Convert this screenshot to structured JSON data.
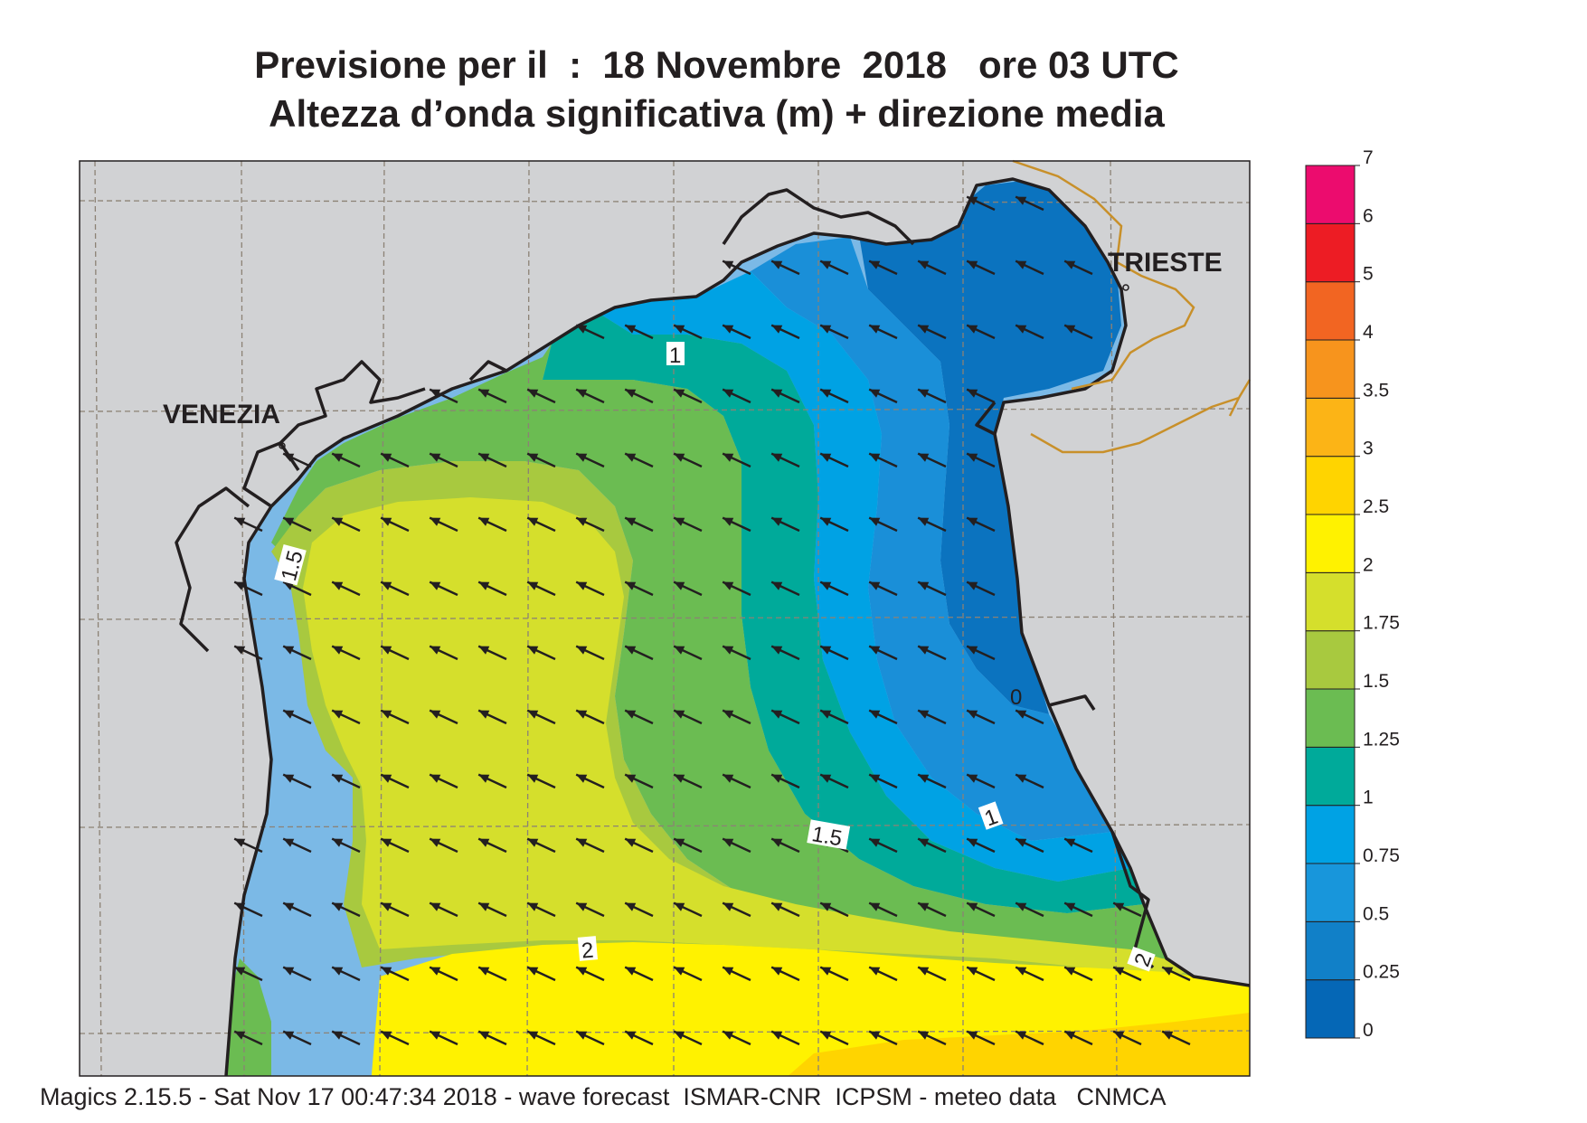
{
  "title": {
    "line1": "Previsione per il  :  18 Novembre  2018   ore 03 UTC",
    "line2": "Altezza d’onda significativa (m) + direzione media"
  },
  "footer": "Magics 2.15.5 - Sat Nov 17 00:47:34 2018 - wave forecast  ISMAR-CNR  ICPSM - meteo data   CNMCA",
  "cities": [
    {
      "name": "VENEZIA"
    },
    {
      "name": "TRIESTE"
    }
  ],
  "contour_labels": [
    "1",
    "1.5",
    "1",
    "1.5",
    "2",
    "2",
    "0"
  ],
  "colorbar": {
    "ticks": [
      "0",
      "0.25",
      "0.5",
      "0.75",
      "1",
      "1.25",
      "1.5",
      "1.75",
      "2",
      "2.5",
      "3",
      "3.5",
      "4",
      "5",
      "6",
      "7"
    ],
    "colors": [
      "#0567b6",
      "#1180c8",
      "#1896db",
      "#00a2e4",
      "#00aa9a",
      "#6bbc52",
      "#a8c93f",
      "#d5df2c",
      "#fff200",
      "#ffd400",
      "#fcb416",
      "#f7941d",
      "#f26522",
      "#ed1c24",
      "#ec0c6e"
    ]
  },
  "colors": {
    "land": "#d1d2d4",
    "coast": "#231f20",
    "border": "#c8902a",
    "arrow": "#231f20"
  },
  "arrows_direction_deg": 205
}
